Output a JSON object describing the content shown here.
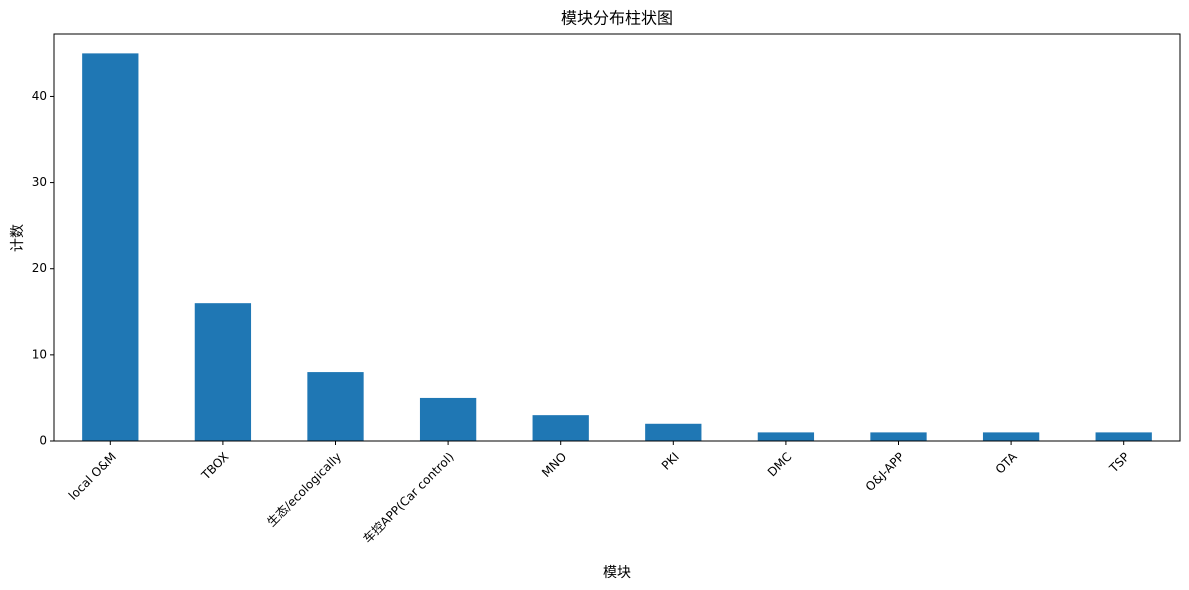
{
  "chart_data": {
    "type": "bar",
    "title": "模块分布柱状图",
    "x_label": "模块",
    "y_label": "计数",
    "categories": [
      "local O&M",
      "TBOX",
      "生态/ecologically",
      "车控APP(Car control)",
      "MNO",
      "PKI",
      "DMC",
      "O&J-APP",
      "OTA",
      "TSP"
    ],
    "values": [
      45,
      16,
      8,
      5,
      3,
      2,
      1,
      1,
      1,
      1
    ],
    "color": "#1f77b4",
    "ylim": [
      0,
      47.25
    ],
    "yticks": [
      0,
      10,
      20,
      30,
      40
    ],
    "grid": false
  }
}
